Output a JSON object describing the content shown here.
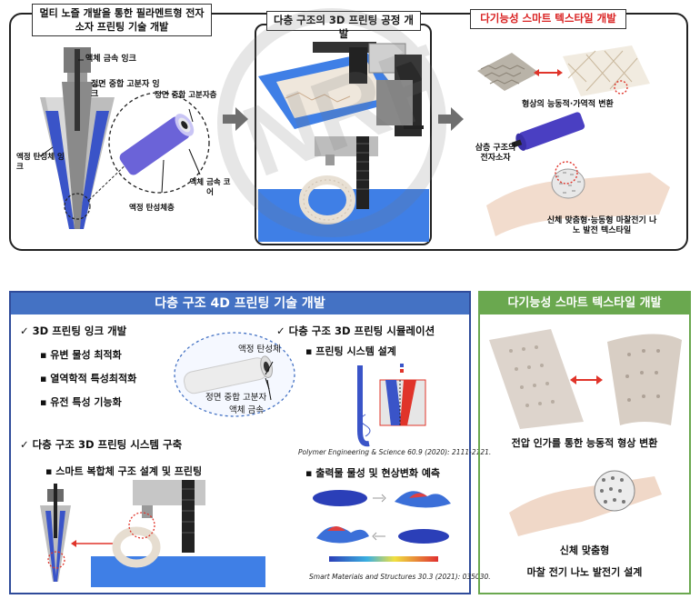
{
  "top": {
    "panel1": {
      "title": "멀티 노즐 개발을 통한 필라멘트형 전자 소자 프린팅 기술 개발",
      "labels": {
        "liquid_metal_ink": "액체 금속 잉크",
        "frontal_polymer_ink": "정면 중합 고분자 잉크",
        "frontal_polymer_layer": "정면 중합 고분자층",
        "liquid_elastomer_ink": "액정 탄성체 잉크",
        "liquid_metal_core": "액체 금속 코어",
        "elastomer_layer": "액정 탄성체층"
      }
    },
    "panel2": {
      "title": "다층 구조의 3D 프린팅 공정 개발"
    },
    "panel3": {
      "title": "다기능성 스마트 텍스타일 개발",
      "labels": {
        "shape_change": "형상의 능동적·가역적 변환",
        "triple_device": "삼층 구조의 전자소자",
        "wearable": "신체 맞춤형·능동형 마찰전기 나노 발전 텍스타일"
      }
    }
  },
  "bottom": {
    "left": {
      "header": "다층 구조 4D 프린팅 기술 개발",
      "items": [
        "3D 프린팅 잉크 개발",
        "유변 물성 최적화",
        "열역학적 특성최적화",
        "유전 특성 기능화",
        "다층 구조 3D 프린팅 시스템 구축",
        "스마트 복합체 구조 설계 및 프린팅",
        "다층 구조 3D 프린팅 시뮬레이션",
        "프린팅 시스템 설계",
        "출력물 물성 및 현상변화 예측"
      ],
      "fiber_labels": {
        "elastomer": "액정 탄성체",
        "polymer": "정면 중합 고분자",
        "metal": "액체 금속"
      },
      "refs": {
        "ref1": "Polymer Engineering & Science 60.9 (2020): 2111-2121.",
        "ref2": "Smart Materials and Structures 30.3 (2021): 035030."
      }
    },
    "right": {
      "header": "다기능성 스마트 텍스타일 개발",
      "caption1": "전압 인가를 통한 능동적 형상 변환",
      "caption2a": "신체 맞춤형",
      "caption2b": "마찰 전기 나노 발전기 설계"
    }
  },
  "colors": {
    "blue_header": "#4472c4",
    "green_header": "#6aa84f",
    "red_accent": "#e0342a",
    "nozzle_blue": "#3a54c8",
    "fiber_purple": "#5a55c8"
  }
}
